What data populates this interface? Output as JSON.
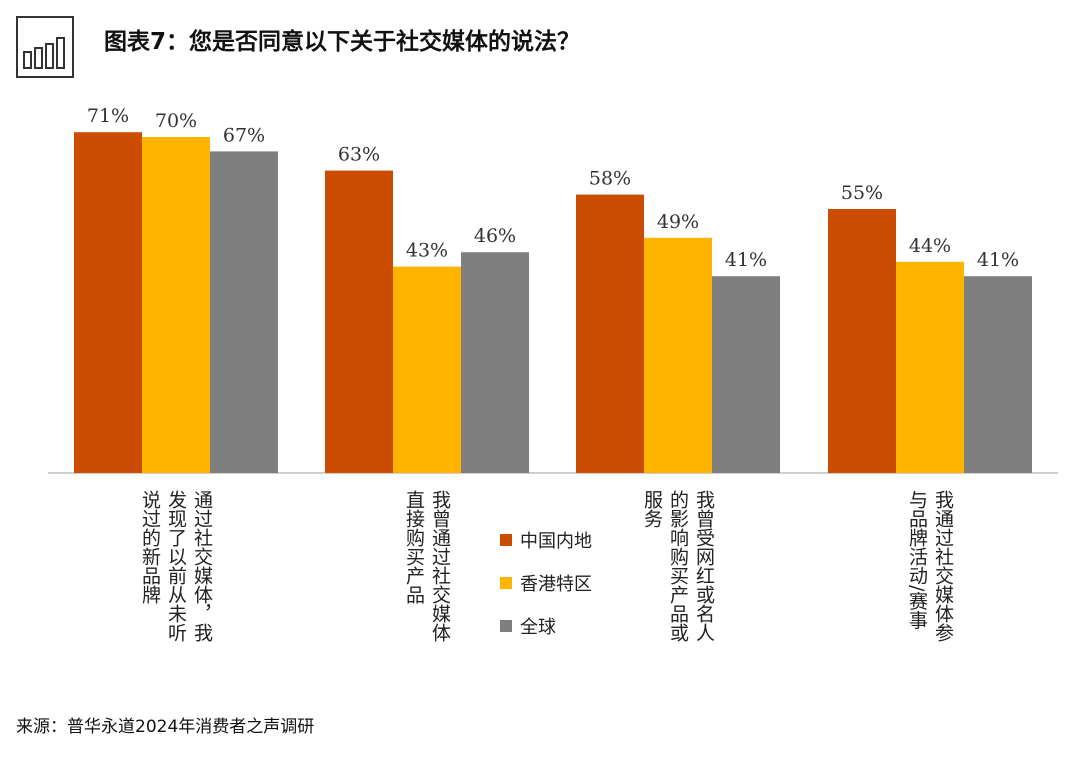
{
  "title": "图表7：您是否同意以下关于社交媒体的说法？",
  "icon": "bar-chart-icon",
  "source": "来源：普华永道2024年消费者之声调研",
  "colors": {
    "series1": "#cc4c02",
    "series2": "#ffb400",
    "series3": "#7f7f7f",
    "axis": "#bdbdbd"
  },
  "chart_data": {
    "type": "bar",
    "title": "图表7：您是否同意以下关于社交媒体的说法？",
    "categories": [
      "通过社交媒体，我发现了以前从未听说过的新品牌",
      "我曾通过社交媒体直接购买产品",
      "我曾受网红或名人的影响购买产品或服务",
      "我通过社交媒体参与品牌活动/赛事"
    ],
    "category_lines": [
      [
        "通过社交媒体，我",
        "发现了以前从未听",
        "说过的新品牌"
      ],
      [
        "我曾通过社交媒体",
        "直接购买产品"
      ],
      [
        "我曾受网红或名人",
        "的影响购买产品或",
        "服务"
      ],
      [
        "我通过社交媒体参",
        "与品牌活动/赛事"
      ]
    ],
    "series": [
      {
        "name": "中国内地",
        "values": [
          71,
          63,
          58,
          55
        ]
      },
      {
        "name": "香港特区",
        "values": [
          70,
          43,
          49,
          44
        ]
      },
      {
        "name": "全球",
        "values": [
          67,
          46,
          41,
          41
        ]
      }
    ],
    "value_suffix": "%",
    "ylim": [
      0,
      80
    ],
    "xlabel": "",
    "ylabel": "",
    "grid": false,
    "legend": "bottom-center"
  }
}
